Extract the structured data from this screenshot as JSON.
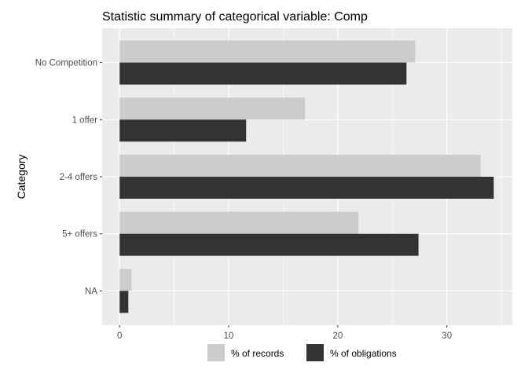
{
  "chart_data": {
    "type": "bar",
    "orientation": "horizontal",
    "title": "Statistic summary of categorical variable:  Comp",
    "xlabel": "",
    "ylabel": "Category",
    "categories": [
      "No Competition",
      "1 offer",
      "2-4 offers",
      "5+ offers",
      "NA"
    ],
    "series": [
      {
        "name": "% of records",
        "color": "#cccccc",
        "values": [
          27.1,
          17.0,
          33.1,
          21.9,
          1.1
        ]
      },
      {
        "name": "% of obligations",
        "color": "#333333",
        "values": [
          26.3,
          11.6,
          34.3,
          27.4,
          0.8
        ]
      }
    ],
    "xlim": [
      -1.6,
      36.0
    ],
    "xticks": [
      0,
      10,
      20,
      30
    ],
    "grid": true,
    "panel_background": "#ebebeb",
    "legend_position": "bottom"
  }
}
